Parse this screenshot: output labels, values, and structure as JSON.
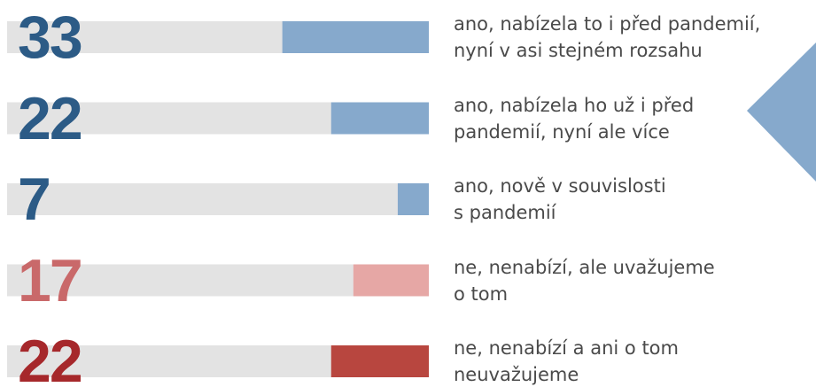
{
  "chart_data": {
    "type": "bar",
    "orientation": "horizontal",
    "categories": [
      "ano, nabízela to i před pandemií,\nnyní v asi stejném rozsahu",
      "ano, nabízela ho už i před\npandemií, nyní ale více",
      "ano, nově v souvislosti\ns pandemií",
      "ne, nenabízí, ale uvažujeme\no tom",
      "ne, nenabízí a ani o tom\nneuvažujeme"
    ],
    "values": [
      33,
      22,
      7,
      17,
      22
    ],
    "colors": [
      "#86a9cc",
      "#86a9cc",
      "#86a9cc",
      "#e6a7a5",
      "#b8463f"
    ],
    "label_colors": [
      "#2c5b86",
      "#2c5b86",
      "#2c5b86",
      "#c9696a",
      "#a6282b"
    ],
    "xlim": [
      0,
      95
    ]
  }
}
